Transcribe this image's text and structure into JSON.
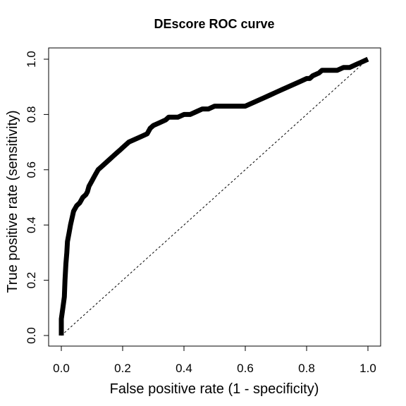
{
  "chart_data": {
    "type": "line",
    "title": "DEscore ROC curve",
    "xlabel": "False positive rate (1 - specificity)",
    "ylabel": "True positive rate (sensitivity)",
    "xlim": [
      0,
      1
    ],
    "ylim": [
      0,
      1
    ],
    "x_ticks": [
      "0.0",
      "0.2",
      "0.4",
      "0.6",
      "0.8",
      "1.0"
    ],
    "y_ticks": [
      "0.0",
      "0.2",
      "0.4",
      "0.6",
      "0.8",
      "1.0"
    ],
    "grid": false,
    "legend": "none",
    "series": [
      {
        "role": "roc-curve",
        "color": "#000000",
        "style": "solid-thick",
        "x": [
          0.0,
          0.0,
          0.005,
          0.01,
          0.012,
          0.015,
          0.018,
          0.02,
          0.025,
          0.03,
          0.04,
          0.05,
          0.06,
          0.07,
          0.08,
          0.085,
          0.09,
          0.1,
          0.11,
          0.12,
          0.13,
          0.14,
          0.15,
          0.16,
          0.17,
          0.18,
          0.19,
          0.2,
          0.22,
          0.24,
          0.26,
          0.28,
          0.29,
          0.3,
          0.32,
          0.34,
          0.35,
          0.38,
          0.4,
          0.42,
          0.44,
          0.46,
          0.48,
          0.5,
          0.52,
          0.55,
          0.58,
          0.6,
          0.62,
          0.64,
          0.66,
          0.68,
          0.7,
          0.72,
          0.74,
          0.76,
          0.78,
          0.8,
          0.81,
          0.82,
          0.84,
          0.85,
          0.86,
          0.88,
          0.9,
          0.92,
          0.94,
          0.96,
          0.98,
          1.0
        ],
        "y": [
          0.0,
          0.06,
          0.1,
          0.14,
          0.2,
          0.26,
          0.3,
          0.34,
          0.37,
          0.4,
          0.45,
          0.47,
          0.48,
          0.5,
          0.51,
          0.52,
          0.54,
          0.56,
          0.58,
          0.6,
          0.61,
          0.62,
          0.63,
          0.64,
          0.65,
          0.66,
          0.67,
          0.68,
          0.7,
          0.71,
          0.72,
          0.73,
          0.75,
          0.76,
          0.77,
          0.78,
          0.79,
          0.79,
          0.8,
          0.8,
          0.81,
          0.82,
          0.82,
          0.83,
          0.83,
          0.83,
          0.83,
          0.83,
          0.84,
          0.85,
          0.86,
          0.87,
          0.88,
          0.89,
          0.9,
          0.91,
          0.92,
          0.93,
          0.93,
          0.94,
          0.95,
          0.96,
          0.96,
          0.96,
          0.96,
          0.97,
          0.97,
          0.98,
          0.99,
          1.0
        ]
      },
      {
        "role": "reference-diagonal",
        "color": "#000000",
        "style": "dashed-thin",
        "x": [
          0,
          1
        ],
        "y": [
          0,
          1
        ]
      }
    ]
  }
}
